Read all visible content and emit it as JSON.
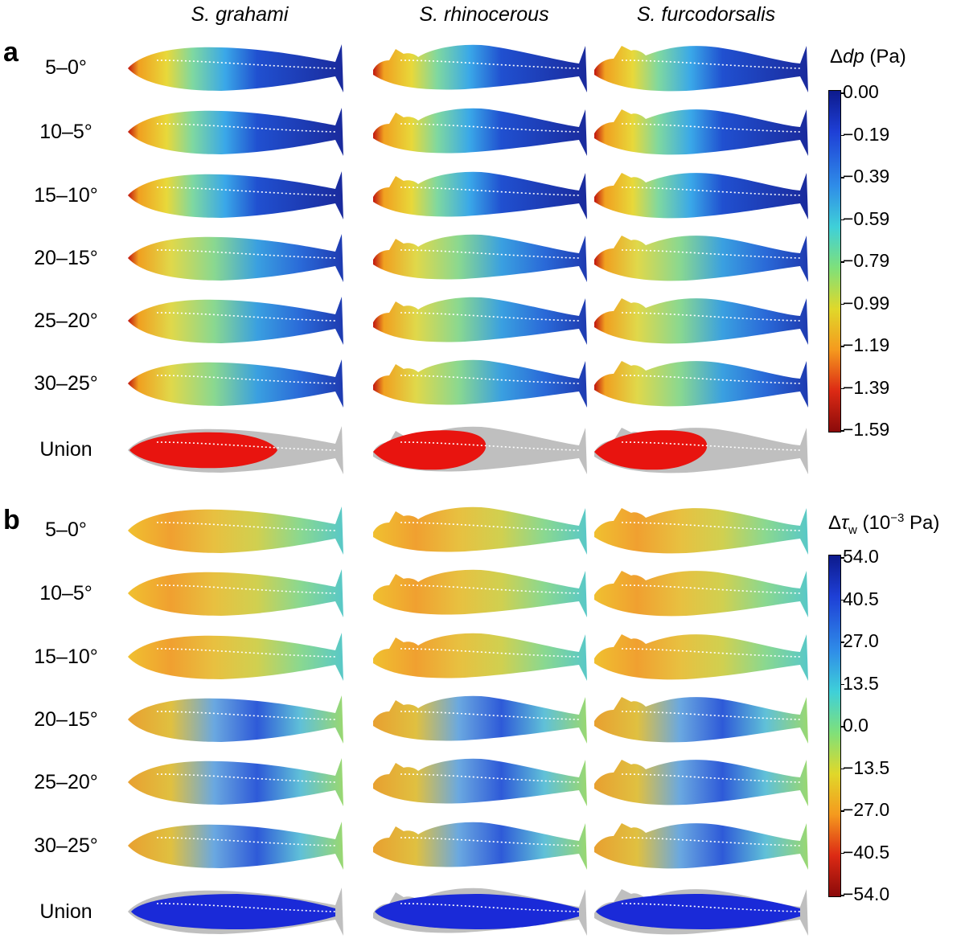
{
  "species": [
    "S. grahami",
    "S. rhinocerous",
    "S. furcodorsalis"
  ],
  "panels": {
    "a": {
      "letter": "a",
      "rows": [
        "5–0°",
        "10–5°",
        "15–10°",
        "20–15°",
        "25–20°",
        "30–25°",
        "Union"
      ],
      "colorbar": {
        "title_prefix": "Δ",
        "title_var": "dp",
        "title_unit": " (Pa)",
        "ticks": [
          "0.00",
          "−0.19",
          "−0.39",
          "−0.59",
          "−0.79",
          "−0.99",
          "−1.19",
          "−1.39",
          "−1.59"
        ]
      },
      "union_color": "#e8140f"
    },
    "b": {
      "letter": "b",
      "rows": [
        "5–0°",
        "10–5°",
        "15–10°",
        "20–15°",
        "25–20°",
        "30–25°",
        "Union"
      ],
      "colorbar": {
        "title_prefix": "Δ",
        "title_var": "τ",
        "title_sub": "w",
        "title_unit": " (10",
        "title_exp": "−3",
        "title_unit2": " Pa)",
        "ticks": [
          "54.0",
          "40.5",
          "27.0",
          "13.5",
          "0.0",
          "−13.5",
          "−27.0",
          "−40.5",
          "−54.0"
        ]
      },
      "union_color": "#1a2ad8"
    }
  },
  "colors": {
    "jet_top": "#0d1a8c",
    "jet_bottom": "#8b0a0a",
    "union_background": "#bfbfbf"
  }
}
